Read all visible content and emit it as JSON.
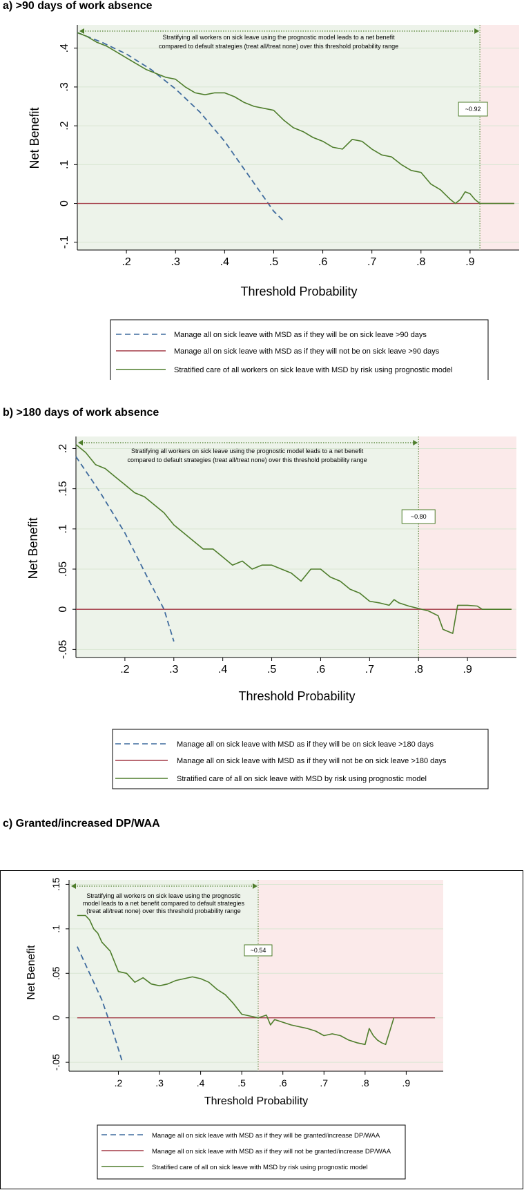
{
  "colors": {
    "treat_all": "#3f6b9e",
    "treat_none": "#a33a46",
    "model": "#4e7d2b",
    "benefit_region": "#edf3ea",
    "harm_region": "#fbeaea",
    "grid": "#d9e6d2"
  },
  "panels": {
    "a": {
      "title": "a)  >90 days of work absence",
      "threshold_label": "~0.92",
      "annotation": [
        "Stratifying all workers on sick leave using the prognostic model leads to a net benefit",
        "compared to default strategies (treat all/treat none) over this threshold probability range"
      ],
      "legend": [
        "Manage all on sick leave with MSD as if they will be on sick leave >90 days",
        "Manage all on sick leave with MSD as if they will not be on sick leave >90 days",
        "Stratified care of all workers on sick leave with MSD by risk using prognostic model"
      ]
    },
    "b": {
      "title": "b)  >180 days of work absence",
      "threshold_label": "~0.80",
      "annotation": [
        "Stratifying all workers on sick leave using the prognostic model leads to a net benefit",
        "compared to default strategies (treat all/treat none) over this threshold probability range"
      ],
      "legend": [
        "Manage all on sick leave with MSD as if they will be on sick leave >180 days",
        "Manage all on sick leave with MSD as if they will not be on sick leave >180 days",
        "Stratified care of all on sick leave with MSD by risk using prognostic model"
      ]
    },
    "c": {
      "title": "c)  Granted/increased DP/WAA",
      "threshold_label": "~0.54",
      "annotation": [
        "Stratifying all workers on sick leave using the prognostic",
        "model leads to a net benefit compared to default strategies",
        "(treat all/treat none) over this threshold probability range"
      ],
      "legend": [
        "Manage all on sick leave with MSD as if they will be granted/increase DP/WAA",
        "Manage all on sick leave with MSD as if they will not be granted/increase DP/WAA",
        "Stratified care of all on sick leave with MSD by risk using prognostic model"
      ]
    }
  },
  "chart_data": [
    {
      "type": "line",
      "title": ">90 days of work absence",
      "xlabel": "Threshold Probability",
      "ylabel": "Net Benefit",
      "xlim": [
        0.1,
        1.0
      ],
      "ylim": [
        -0.12,
        0.46
      ],
      "x_ticks": [
        0.2,
        0.3,
        0.4,
        0.5,
        0.6,
        0.7,
        0.8,
        0.9
      ],
      "x_tick_labels": [
        ".2",
        ".3",
        ".4",
        ".5",
        ".6",
        ".7",
        ".8",
        ".9"
      ],
      "y_ticks": [
        -0.1,
        0,
        0.1,
        0.2,
        0.3,
        0.4
      ],
      "y_tick_labels": [
        "-.1",
        "0",
        ".1",
        ".2",
        ".3",
        ".4"
      ],
      "threshold": 0.92,
      "series": [
        {
          "name": "Treat all",
          "style": "dashed",
          "x": [
            0.1,
            0.15,
            0.2,
            0.25,
            0.3,
            0.35,
            0.4,
            0.45,
            0.5,
            0.52
          ],
          "y": [
            0.44,
            0.415,
            0.385,
            0.345,
            0.295,
            0.235,
            0.16,
            0.07,
            -0.02,
            -0.045
          ]
        },
        {
          "name": "Treat none",
          "style": "solid",
          "x": [
            0.1,
            0.99
          ],
          "y": [
            0,
            0
          ]
        },
        {
          "name": "Prognostic model",
          "style": "solid",
          "x": [
            0.1,
            0.12,
            0.14,
            0.16,
            0.18,
            0.2,
            0.22,
            0.24,
            0.26,
            0.28,
            0.3,
            0.32,
            0.34,
            0.36,
            0.38,
            0.4,
            0.42,
            0.44,
            0.46,
            0.48,
            0.5,
            0.52,
            0.54,
            0.56,
            0.58,
            0.6,
            0.62,
            0.64,
            0.66,
            0.68,
            0.7,
            0.72,
            0.74,
            0.76,
            0.78,
            0.8,
            0.82,
            0.84,
            0.86,
            0.87,
            0.88,
            0.89,
            0.9,
            0.91,
            0.92,
            0.99
          ],
          "y": [
            0.44,
            0.43,
            0.415,
            0.405,
            0.39,
            0.375,
            0.36,
            0.345,
            0.335,
            0.325,
            0.32,
            0.3,
            0.285,
            0.28,
            0.285,
            0.285,
            0.275,
            0.26,
            0.25,
            0.245,
            0.24,
            0.215,
            0.195,
            0.185,
            0.17,
            0.16,
            0.145,
            0.14,
            0.165,
            0.16,
            0.14,
            0.125,
            0.12,
            0.1,
            0.085,
            0.08,
            0.05,
            0.035,
            0.01,
            0.0,
            0.01,
            0.03,
            0.025,
            0.01,
            0.0,
            0.0
          ]
        }
      ],
      "legend_position": "bottom"
    },
    {
      "type": "line",
      "title": ">180 days of work absence",
      "xlabel": "Threshold Probability",
      "ylabel": "Net Benefit",
      "xlim": [
        0.1,
        1.0
      ],
      "ylim": [
        -0.06,
        0.215
      ],
      "x_ticks": [
        0.2,
        0.3,
        0.4,
        0.5,
        0.6,
        0.7,
        0.8,
        0.9
      ],
      "x_tick_labels": [
        ".2",
        ".3",
        ".4",
        ".5",
        ".6",
        ".7",
        ".8",
        ".9"
      ],
      "y_ticks": [
        -0.05,
        0,
        0.05,
        0.1,
        0.15,
        0.2
      ],
      "y_tick_labels": [
        "-.05",
        "0",
        ".05",
        ".1",
        ".15",
        ".2"
      ],
      "threshold": 0.8,
      "series": [
        {
          "name": "Treat all",
          "style": "dashed",
          "x": [
            0.1,
            0.15,
            0.2,
            0.25,
            0.28,
            0.3
          ],
          "y": [
            0.19,
            0.145,
            0.095,
            0.035,
            0.0,
            -0.04
          ]
        },
        {
          "name": "Treat none",
          "style": "solid",
          "x": [
            0.1,
            0.99
          ],
          "y": [
            0,
            0
          ]
        },
        {
          "name": "Prognostic model",
          "style": "solid",
          "x": [
            0.1,
            0.12,
            0.14,
            0.16,
            0.18,
            0.2,
            0.22,
            0.24,
            0.26,
            0.28,
            0.3,
            0.32,
            0.34,
            0.36,
            0.38,
            0.4,
            0.42,
            0.44,
            0.46,
            0.48,
            0.5,
            0.52,
            0.54,
            0.56,
            0.58,
            0.6,
            0.62,
            0.64,
            0.66,
            0.68,
            0.7,
            0.72,
            0.74,
            0.75,
            0.76,
            0.78,
            0.8,
            0.82,
            0.84,
            0.85,
            0.87,
            0.88,
            0.9,
            0.92,
            0.93,
            0.99
          ],
          "y": [
            0.205,
            0.195,
            0.18,
            0.175,
            0.165,
            0.155,
            0.145,
            0.14,
            0.13,
            0.12,
            0.105,
            0.095,
            0.085,
            0.075,
            0.075,
            0.065,
            0.055,
            0.06,
            0.05,
            0.055,
            0.055,
            0.05,
            0.045,
            0.035,
            0.05,
            0.05,
            0.04,
            0.035,
            0.025,
            0.02,
            0.01,
            0.008,
            0.005,
            0.012,
            0.008,
            0.004,
            0.001,
            -0.002,
            -0.008,
            -0.025,
            -0.03,
            0.005,
            0.005,
            0.004,
            0.0,
            0.0
          ]
        }
      ],
      "legend_position": "bottom"
    },
    {
      "type": "line",
      "title": "Granted/increased DP/WAA",
      "xlabel": "Threshold Probability",
      "ylabel": "Net Benefit",
      "xlim": [
        0.08,
        0.99
      ],
      "ylim": [
        -0.06,
        0.155
      ],
      "x_ticks": [
        0.2,
        0.3,
        0.4,
        0.5,
        0.6,
        0.7,
        0.8,
        0.9
      ],
      "x_tick_labels": [
        ".2",
        ".3",
        ".4",
        ".5",
        ".6",
        ".7",
        ".8",
        ".9"
      ],
      "y_ticks": [
        -0.05,
        0,
        0.05,
        0.1,
        0.15
      ],
      "y_tick_labels": [
        "-.05",
        "0",
        ".05",
        ".1",
        ".15"
      ],
      "threshold": 0.54,
      "series": [
        {
          "name": "Treat all",
          "style": "dashed",
          "x": [
            0.1,
            0.13,
            0.16,
            0.19,
            0.21
          ],
          "y": [
            0.08,
            0.05,
            0.02,
            -0.02,
            -0.05
          ]
        },
        {
          "name": "Treat none",
          "style": "solid",
          "x": [
            0.1,
            0.97
          ],
          "y": [
            0,
            0
          ]
        },
        {
          "name": "Prognostic model",
          "style": "solid",
          "x": [
            0.1,
            0.12,
            0.13,
            0.14,
            0.15,
            0.16,
            0.18,
            0.2,
            0.22,
            0.24,
            0.26,
            0.28,
            0.3,
            0.32,
            0.34,
            0.36,
            0.38,
            0.4,
            0.42,
            0.44,
            0.46,
            0.48,
            0.5,
            0.52,
            0.54,
            0.56,
            0.57,
            0.58,
            0.6,
            0.62,
            0.64,
            0.66,
            0.68,
            0.7,
            0.72,
            0.74,
            0.76,
            0.78,
            0.8,
            0.81,
            0.82,
            0.83,
            0.84,
            0.85,
            0.86,
            0.87
          ],
          "y": [
            0.115,
            0.115,
            0.11,
            0.1,
            0.095,
            0.085,
            0.075,
            0.052,
            0.05,
            0.04,
            0.045,
            0.038,
            0.036,
            0.038,
            0.042,
            0.044,
            0.046,
            0.044,
            0.04,
            0.032,
            0.026,
            0.016,
            0.004,
            0.002,
            0.0,
            0.003,
            -0.008,
            -0.002,
            -0.005,
            -0.008,
            -0.01,
            -0.012,
            -0.015,
            -0.02,
            -0.018,
            -0.02,
            -0.025,
            -0.028,
            -0.03,
            -0.012,
            -0.02,
            -0.025,
            -0.028,
            -0.03,
            -0.015,
            0.0
          ]
        }
      ],
      "legend_position": "bottom"
    }
  ]
}
